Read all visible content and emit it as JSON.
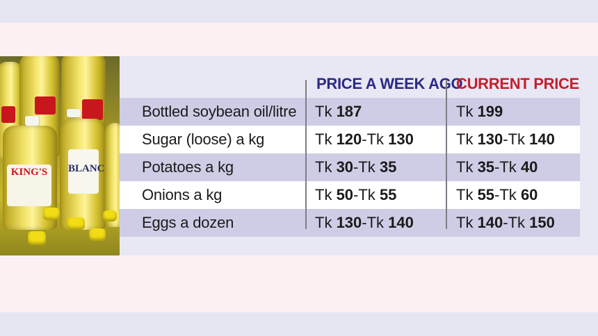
{
  "table": {
    "headers": {
      "week": "PRICE A WEEK AGO",
      "current": "CURRENT PRICE"
    },
    "rows": [
      {
        "item": "Bottled soybean oil/litre",
        "week": "Tk 187",
        "current": "Tk 199"
      },
      {
        "item": "Sugar (loose) a kg",
        "week": "Tk 120-Tk 130",
        "current": "Tk 130-Tk 140"
      },
      {
        "item": "Potatoes a kg",
        "week": "Tk 30-Tk 35",
        "current": "Tk 35-Tk 40"
      },
      {
        "item": "Onions a kg",
        "week": "Tk 50-Tk 55",
        "current": "Tk 55-Tk 60"
      },
      {
        "item": "Eggs a dozen",
        "week": "Tk 130-Tk 140",
        "current": "Tk 140-Tk 150"
      }
    ]
  },
  "photo": {
    "brand_1": "KING'S",
    "brand_2": "BLANC"
  },
  "colors": {
    "header_week": "#2c2a84",
    "header_current": "#c61e2a",
    "row_shade": "#cfcde6"
  }
}
